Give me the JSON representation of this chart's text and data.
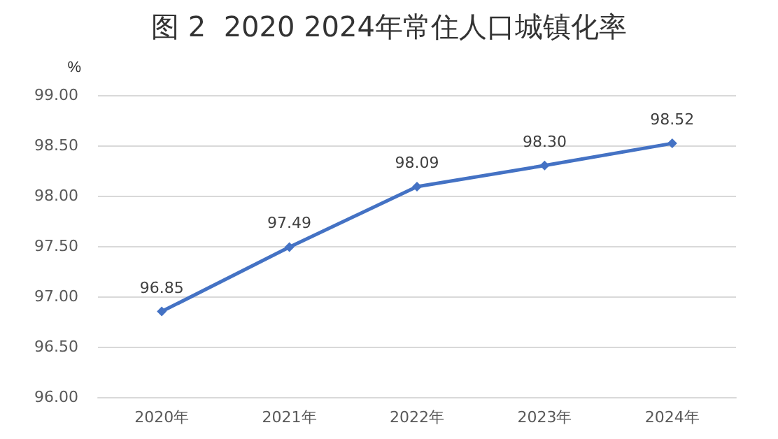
{
  "chart_data": {
    "type": "line",
    "title": "图 2  2020 2024年常住人口城镇化率",
    "ylabel": "%",
    "categories": [
      "2020年",
      "2021年",
      "2022年",
      "2023年",
      "2024年"
    ],
    "series": [
      {
        "color": "#4472c4",
        "values": [
          96.85,
          97.49,
          98.09,
          98.3,
          98.52
        ]
      }
    ],
    "value_labels": [
      "96.85",
      "97.49",
      "98.09",
      "98.30",
      "98.52"
    ],
    "ylim": [
      96,
      99
    ],
    "yticks": [
      {
        "value": 96,
        "label": "96.00"
      },
      {
        "value": 96.5,
        "label": "96.50"
      },
      {
        "value": 97,
        "label": "97.00"
      },
      {
        "value": 97.5,
        "label": "97.50"
      },
      {
        "value": 98,
        "label": "98.00"
      },
      {
        "value": 98.5,
        "label": "98.50"
      },
      {
        "value": 99,
        "label": "99.00"
      }
    ],
    "grid": "y",
    "marker": "diamond",
    "line_style": "solid"
  }
}
